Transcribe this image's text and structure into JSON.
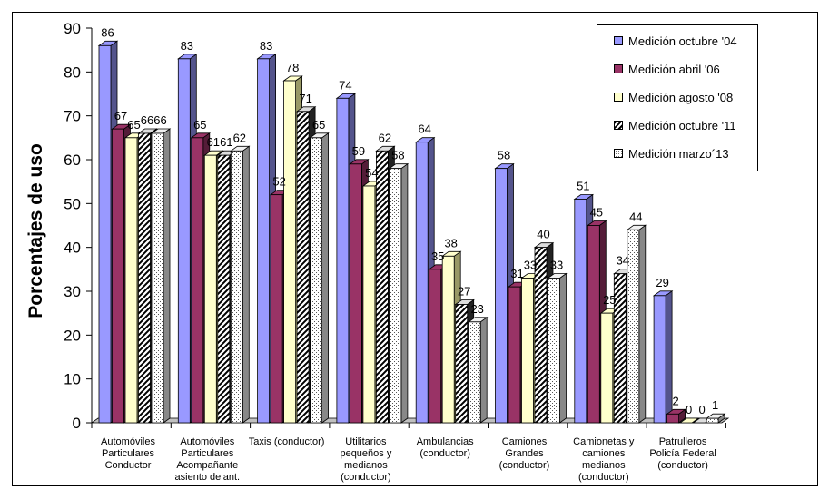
{
  "chart_data": {
    "type": "bar",
    "title": "",
    "xlabel": "",
    "ylabel": "Porcentajes de uso",
    "ylim": [
      0,
      90
    ],
    "yticks": [
      0,
      10,
      20,
      30,
      40,
      50,
      60,
      70,
      80,
      90
    ],
    "grid": false,
    "legend_position": "top-right",
    "categories": [
      [
        "Automóviles",
        "Particulares",
        "Conductor"
      ],
      [
        "Automóviles",
        "Particulares",
        "Acompañante",
        "asiento delant."
      ],
      [
        "Taxis (conductor)"
      ],
      [
        "Utilitarios",
        "pequeños y",
        "medianos",
        "(conductor)"
      ],
      [
        "Ambulancias",
        "(conductor)"
      ],
      [
        "Camiones",
        "Grandes",
        "(conductor)"
      ],
      [
        "Camionetas y",
        "camiones",
        "medianos",
        "(conductor)"
      ],
      [
        "Patrulleros",
        "Policía Federal",
        "(conductor)"
      ]
    ],
    "series": [
      {
        "name": "Medición octubre '04",
        "color": "#9999ff",
        "pattern": "solid",
        "values": [
          86,
          83,
          83,
          74,
          64,
          58,
          51,
          29
        ]
      },
      {
        "name": "Medición abril '06",
        "color": "#993366",
        "pattern": "solid",
        "values": [
          67,
          65,
          52,
          59,
          35,
          31,
          45,
          2
        ]
      },
      {
        "name": "Medición agosto '08",
        "color": "#ffffcc",
        "pattern": "solid",
        "values": [
          65,
          61,
          78,
          54,
          38,
          33,
          25,
          0
        ]
      },
      {
        "name": "Medición octubre '11",
        "color": "#ffffff",
        "pattern": "diagonal",
        "values": [
          66,
          61,
          71,
          62,
          27,
          40,
          34,
          0
        ]
      },
      {
        "name": "Medición marzo´13",
        "color": "#ffffff",
        "pattern": "dots",
        "values": [
          66,
          62,
          65,
          58,
          23,
          33,
          44,
          1
        ]
      }
    ]
  }
}
